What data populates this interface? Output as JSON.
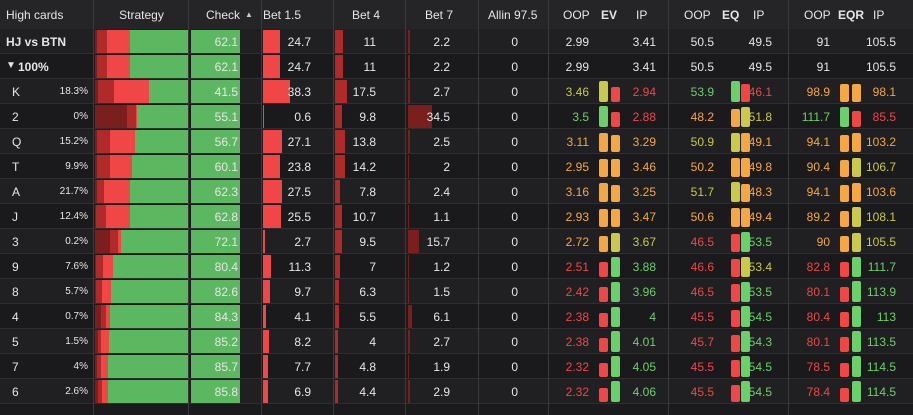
{
  "colors": {
    "check_green": "#5cb860",
    "bet_red": "#f04646",
    "bet_dark_red": "#b02a2a",
    "bet_darker_red": "#7a1e1e",
    "val_orange": "#f5a742",
    "val_yellow": "#c9c94a",
    "val_green": "#6ad16a",
    "val_red": "#f04646"
  },
  "header": {
    "high_cards": "High cards",
    "strategy": "Strategy",
    "check": "Check",
    "sort_arrow": "▲",
    "bet15": "Bet 1.5",
    "bet4": "Bet 4",
    "bet7": "Bet 7",
    "allin": "Allin 97.5",
    "ev_oop": "OOP",
    "ev": "EV",
    "ev_ip": "IP",
    "eq_oop": "OOP",
    "eq": "EQ",
    "eq_ip": "IP",
    "eqr_oop": "OOP",
    "eqr": "EQR",
    "eqr_ip": "IP"
  },
  "summary_rows": [
    {
      "label": "HJ vs BTN",
      "filter_icon": "",
      "strategy": {
        "check": 62.1,
        "bet15": 24.7,
        "bet4": 11,
        "bet7": 2.2
      },
      "check": "62.1",
      "bet15": "24.7",
      "bet4": "11",
      "bet7": "2.2",
      "allin": "0",
      "ev_oop": "2.99",
      "ev_ip": "3.41",
      "eq_oop": "50.5",
      "eq_ip": "49.5",
      "eqr_oop": "91",
      "eqr_ip": "105.5"
    },
    {
      "label": "100%",
      "filter_icon": "▼",
      "strategy": {
        "check": 62.1,
        "bet15": 24.7,
        "bet4": 11,
        "bet7": 2.2
      },
      "check": "62.1",
      "bet15": "24.7",
      "bet4": "11",
      "bet7": "2.2",
      "allin": "0",
      "ev_oop": "2.99",
      "ev_ip": "3.41",
      "eq_oop": "50.5",
      "eq_ip": "49.5",
      "eqr_oop": "91",
      "eqr_ip": "105.5"
    }
  ],
  "card_rows": [
    {
      "card": "K",
      "pct": "18.3%",
      "check": "41.5",
      "bet15": "38.3",
      "bet4": "17.5",
      "bet7": "2.7",
      "allin": "0",
      "ev_oop": "3.46",
      "ev_ip": "2.94",
      "eq_oop": "53.9",
      "eq_ip": "46.1",
      "eqr_oop": "98.9",
      "eqr_ip": "98.1",
      "c": {
        "ev_oop": "yellow",
        "ev_ip": "red",
        "eq_oop": "green",
        "eq_ip": "red",
        "eqr_oop": "orange",
        "eqr_ip": "orange"
      }
    },
    {
      "card": "2",
      "pct": "0%",
      "check": "55.1",
      "bet15": "0.6",
      "bet4": "9.8",
      "bet7": "34.5",
      "allin": "0",
      "ev_oop": "3.5",
      "ev_ip": "2.88",
      "eq_oop": "48.2",
      "eq_ip": "51.8",
      "eqr_oop": "111.7",
      "eqr_ip": "85.5",
      "c": {
        "ev_oop": "green",
        "ev_ip": "red",
        "eq_oop": "orange",
        "eq_ip": "yellow",
        "eqr_oop": "green",
        "eqr_ip": "red"
      }
    },
    {
      "card": "Q",
      "pct": "15.2%",
      "check": "56.7",
      "bet15": "27.1",
      "bet4": "13.8",
      "bet7": "2.5",
      "allin": "0",
      "ev_oop": "3.11",
      "ev_ip": "3.29",
      "eq_oop": "50.9",
      "eq_ip": "49.1",
      "eqr_oop": "94.1",
      "eqr_ip": "103.2",
      "c": {
        "ev_oop": "orange",
        "ev_ip": "orange",
        "eq_oop": "yellow",
        "eq_ip": "orange",
        "eqr_oop": "orange",
        "eqr_ip": "orange"
      }
    },
    {
      "card": "T",
      "pct": "9.9%",
      "check": "60.1",
      "bet15": "23.8",
      "bet4": "14.2",
      "bet7": "2",
      "allin": "0",
      "ev_oop": "2.95",
      "ev_ip": "3.46",
      "eq_oop": "50.2",
      "eq_ip": "49.8",
      "eqr_oop": "90.4",
      "eqr_ip": "106.7",
      "c": {
        "ev_oop": "orange",
        "ev_ip": "orange",
        "eq_oop": "orange",
        "eq_ip": "orange",
        "eqr_oop": "orange",
        "eqr_ip": "yellow"
      }
    },
    {
      "card": "A",
      "pct": "21.7%",
      "check": "62.3",
      "bet15": "27.5",
      "bet4": "7.8",
      "bet7": "2.4",
      "allin": "0",
      "ev_oop": "3.16",
      "ev_ip": "3.25",
      "eq_oop": "51.7",
      "eq_ip": "48.3",
      "eqr_oop": "94.1",
      "eqr_ip": "103.6",
      "c": {
        "ev_oop": "orange",
        "ev_ip": "orange",
        "eq_oop": "yellow",
        "eq_ip": "orange",
        "eqr_oop": "orange",
        "eqr_ip": "orange"
      }
    },
    {
      "card": "J",
      "pct": "12.4%",
      "check": "62.8",
      "bet15": "25.5",
      "bet4": "10.7",
      "bet7": "1.1",
      "allin": "0",
      "ev_oop": "2.93",
      "ev_ip": "3.47",
      "eq_oop": "50.6",
      "eq_ip": "49.4",
      "eqr_oop": "89.2",
      "eqr_ip": "108.1",
      "c": {
        "ev_oop": "orange",
        "ev_ip": "orange",
        "eq_oop": "orange",
        "eq_ip": "orange",
        "eqr_oop": "orange",
        "eqr_ip": "yellow"
      }
    },
    {
      "card": "3",
      "pct": "0.2%",
      "check": "72.1",
      "bet15": "2.7",
      "bet4": "9.5",
      "bet7": "15.7",
      "allin": "0",
      "ev_oop": "2.72",
      "ev_ip": "3.67",
      "eq_oop": "46.5",
      "eq_ip": "53.5",
      "eqr_oop": "90",
      "eqr_ip": "105.5",
      "c": {
        "ev_oop": "orange",
        "ev_ip": "yellow",
        "eq_oop": "red",
        "eq_ip": "green",
        "eqr_oop": "orange",
        "eqr_ip": "yellow"
      }
    },
    {
      "card": "9",
      "pct": "7.6%",
      "check": "80.4",
      "bet15": "11.3",
      "bet4": "7",
      "bet7": "1.2",
      "allin": "0",
      "ev_oop": "2.51",
      "ev_ip": "3.88",
      "eq_oop": "46.6",
      "eq_ip": "53.4",
      "eqr_oop": "82.8",
      "eqr_ip": "111.7",
      "c": {
        "ev_oop": "red",
        "ev_ip": "green",
        "eq_oop": "red",
        "eq_ip": "yellow",
        "eqr_oop": "red",
        "eqr_ip": "green"
      }
    },
    {
      "card": "8",
      "pct": "5.7%",
      "check": "82.6",
      "bet15": "9.7",
      "bet4": "6.3",
      "bet7": "1.5",
      "allin": "0",
      "ev_oop": "2.42",
      "ev_ip": "3.96",
      "eq_oop": "46.5",
      "eq_ip": "53.5",
      "eqr_oop": "80.1",
      "eqr_ip": "113.9",
      "c": {
        "ev_oop": "red",
        "ev_ip": "green",
        "eq_oop": "red",
        "eq_ip": "green",
        "eqr_oop": "red",
        "eqr_ip": "green"
      }
    },
    {
      "card": "4",
      "pct": "0.7%",
      "check": "84.3",
      "bet15": "4.1",
      "bet4": "5.5",
      "bet7": "6.1",
      "allin": "0",
      "ev_oop": "2.38",
      "ev_ip": "4",
      "eq_oop": "45.5",
      "eq_ip": "54.5",
      "eqr_oop": "80.4",
      "eqr_ip": "113",
      "c": {
        "ev_oop": "red",
        "ev_ip": "green",
        "eq_oop": "red",
        "eq_ip": "green",
        "eqr_oop": "red",
        "eqr_ip": "green"
      }
    },
    {
      "card": "5",
      "pct": "1.5%",
      "check": "85.2",
      "bet15": "8.2",
      "bet4": "4",
      "bet7": "2.7",
      "allin": "0",
      "ev_oop": "2.38",
      "ev_ip": "4.01",
      "eq_oop": "45.7",
      "eq_ip": "54.3",
      "eqr_oop": "80.1",
      "eqr_ip": "113.5",
      "c": {
        "ev_oop": "red",
        "ev_ip": "green",
        "eq_oop": "red",
        "eq_ip": "green",
        "eqr_oop": "red",
        "eqr_ip": "green"
      }
    },
    {
      "card": "7",
      "pct": "4%",
      "check": "85.7",
      "bet15": "7.7",
      "bet4": "4.8",
      "bet7": "1.9",
      "allin": "0",
      "ev_oop": "2.32",
      "ev_ip": "4.05",
      "eq_oop": "45.5",
      "eq_ip": "54.5",
      "eqr_oop": "78.5",
      "eqr_ip": "114.5",
      "c": {
        "ev_oop": "red",
        "ev_ip": "green",
        "eq_oop": "red",
        "eq_ip": "green",
        "eqr_oop": "red",
        "eqr_ip": "green"
      }
    },
    {
      "card": "6",
      "pct": "2.6%",
      "check": "85.8",
      "bet15": "6.9",
      "bet4": "4.4",
      "bet7": "2.9",
      "allin": "0",
      "ev_oop": "2.32",
      "ev_ip": "4.06",
      "eq_oop": "45.5",
      "eq_ip": "54.5",
      "eqr_oop": "78.4",
      "eqr_ip": "114.5",
      "c": {
        "ev_oop": "red",
        "ev_ip": "green",
        "eq_oop": "red",
        "eq_ip": "green",
        "eqr_oop": "red",
        "eqr_ip": "green"
      }
    }
  ]
}
